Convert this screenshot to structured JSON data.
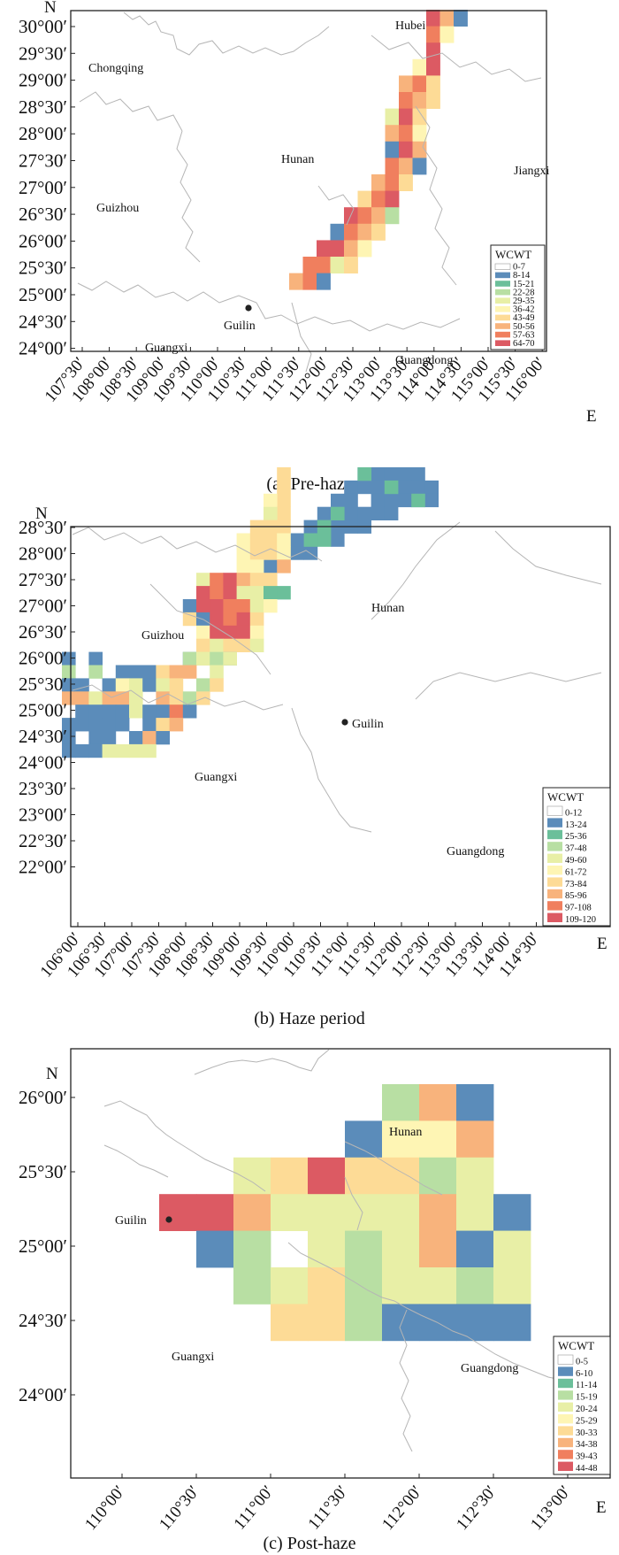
{
  "colors": {
    "background": "#ffffff",
    "boundary": "#b5b5b5",
    "city_dot": "#222222",
    "legend_ramp": [
      "#ffffff",
      "#5b8cba",
      "#6bbf9a",
      "#b8dfa3",
      "#e8efa6",
      "#fef5b4",
      "#fddb96",
      "#f8b37c",
      "#f07f5e",
      "#dc5a63"
    ]
  },
  "panels": [
    {
      "caption": "(a) Pre-haze",
      "north_label": "N",
      "east_label": "E",
      "y_ticks": [
        "30°00′",
        "29°30′",
        "29°00′",
        "28°30′",
        "28°00′",
        "27°30′",
        "27°00′",
        "26°30′",
        "26°00′",
        "25°30′",
        "25°00′",
        "24°30′",
        "24°00′"
      ],
      "x_ticks": [
        "107°30′",
        "108°00′",
        "108°30′",
        "109°00′",
        "109°30′",
        "110°00′",
        "110°30′",
        "111°00′",
        "111°30′",
        "112°00′",
        "112°30′",
        "113°00′",
        "113°30′",
        "114°00′",
        "114°30′",
        "115°00′",
        "115°30′",
        "116°00′"
      ],
      "provinces": [
        "Chongqing",
        "Hubei",
        "Hunan",
        "Jiangxi",
        "Guizhou",
        "Guangxi",
        "Guangdong"
      ],
      "city": "Guilin",
      "legend": {
        "title": "WCWT",
        "items": [
          "0-7",
          "8-14",
          "15-21",
          "22-28",
          "29-35",
          "36-42",
          "43-49",
          "50-56",
          "57-63",
          "64-70"
        ]
      }
    },
    {
      "caption": "(b) Haze period",
      "north_label": "N",
      "east_label": "E",
      "y_ticks": [
        "28°30′",
        "28°00′",
        "27°30′",
        "27°00′",
        "26°30′",
        "26°00′",
        "25°30′",
        "25°00′",
        "24°30′",
        "24°00′",
        "23°30′",
        "23°00′",
        "22°30′",
        "22°00′"
      ],
      "x_ticks": [
        "106°00′",
        "106°30′",
        "107°00′",
        "107°30′",
        "108°00′",
        "108°30′",
        "109°00′",
        "109°30′",
        "110°00′",
        "110°30′",
        "111°00′",
        "111°30′",
        "112°00′",
        "112°30′",
        "113°00′",
        "113°30′",
        "114°00′",
        "114°30′"
      ],
      "provinces": [
        "Hunan",
        "Guizhou",
        "Guangxi",
        "Guangdong"
      ],
      "city": "Guilin",
      "legend": {
        "title": "WCWT",
        "items": [
          "0-12",
          "13-24",
          "25-36",
          "37-48",
          "49-60",
          "61-72",
          "73-84",
          "85-96",
          "97-108",
          "109-120"
        ]
      }
    },
    {
      "caption": "(c) Post-haze",
      "north_label": "N",
      "east_label": "E",
      "y_ticks": [
        "26°00′",
        "25°30′",
        "25°00′",
        "24°30′",
        "24°00′"
      ],
      "x_ticks": [
        "110°00′",
        "110°30′",
        "111°00′",
        "111°30′",
        "112°00′",
        "112°30′",
        "113°00′"
      ],
      "provinces": [
        "Hunan",
        "Guangxi",
        "Guangdong"
      ],
      "city": "Guilin",
      "legend": {
        "title": "WCWT",
        "items": [
          "0-5",
          "6-10",
          "11-14",
          "15-19",
          "20-24",
          "25-29",
          "30-33",
          "34-38",
          "39-43",
          "44-48"
        ]
      }
    }
  ]
}
